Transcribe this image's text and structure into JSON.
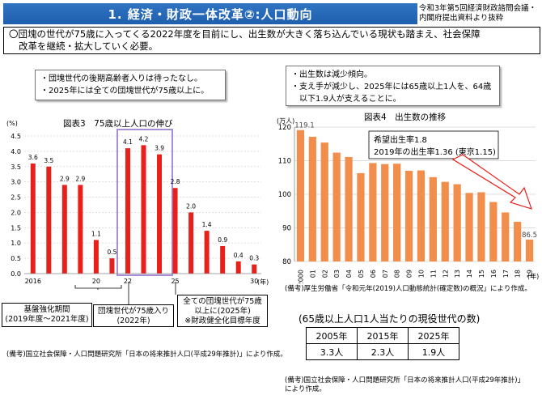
{
  "header": {
    "title": "1. 経済・財政一体改革②:人口動向",
    "source_line1": "令和3年第5回経済財政諮問会議・",
    "source_line2": "内閣府提出資料より抜粋"
  },
  "summary": {
    "line1": "〇団塊の世代が75歳に入ってくる2022年度を目前にし、出生数が大きく落ち込んでいる現状も踏まえ、社会保障",
    "line2": "改革を継続・拡大していく必要。"
  },
  "left_note": {
    "line1": "・団塊世代の後期高齢者入りは待ったなし。",
    "line2": "・2025年には全ての団塊世代が75歳以上に。"
  },
  "right_note": {
    "line1": "・出生数は減少傾向。",
    "line2": "・支え手が減少し、2025年には65歳以上1人を、64歳",
    "line3": "以下1.9人が支えることに。"
  },
  "chart3": {
    "title": "図表3　75歳以上人口の伸び",
    "unit": "(%)",
    "year_unit": "(年)",
    "callout_left_line1": "基盤強化期間",
    "callout_left_line2": "(2019年度～2021年度)",
    "callout_mid_line1": "団塊世代が75歳入り",
    "callout_mid_line2": "(2022年)",
    "callout_right_line1": "全ての団塊世代が75歳",
    "callout_right_line2": "以上に(2025年)",
    "callout_right_line3": "※財政健全化目標年度",
    "footnote": "(備考)国立社会保障・人口問題研究所「日本の将来推計人口(平成29年推計)」により作成。"
  },
  "chart4": {
    "title": "図表4　出生数の推移",
    "unit": "(万人)",
    "year_unit": "(年)",
    "annot_line1": "希望出生率1.8",
    "annot_line2": "2019年の出生率1.36 (東京1.15)",
    "footnote": "(備考)厚生労働省「令和元年(2019)人口動態統計(確定数)の概況」により作成。"
  },
  "workers": {
    "title": "(65歳以上人口1人当たりの現役世代の数)",
    "headers": [
      "2005年",
      "2015年",
      "2025年"
    ],
    "values": [
      "3.3人",
      "2.3人",
      "1.9人"
    ],
    "footnote_line1": "(備考)国立社会保障・人口問題研究所「日本の将来推計人口(平成29年推計)」",
    "footnote_line2": "により作成。"
  },
  "colors": {
    "header_blue": "#2563b4",
    "bar_red": "#e8201b",
    "bar_orange": "#f28e4c",
    "highlight_purple": "#a88ed4"
  },
  "chart_data": [
    {
      "type": "bar",
      "title": "図表3　75歳以上人口の伸び",
      "ylabel": "(%)",
      "ylim": [
        0,
        4.5
      ],
      "x": [
        2016,
        2017,
        2018,
        2019,
        2020,
        2021,
        2022,
        2023,
        2024,
        2025,
        2026,
        2027,
        2028,
        2029,
        2030
      ],
      "tick_labels": [
        "2016",
        "",
        "",
        "",
        "20",
        "",
        "22",
        "",
        "",
        "25",
        "",
        "",
        "",
        "",
        "30"
      ],
      "yticks": [
        "0.0",
        "0.5",
        "1.0",
        "1.5",
        "2.0",
        "2.5",
        "3.0",
        "3.5",
        "4.0",
        "4.5"
      ],
      "values": [
        3.6,
        3.5,
        2.9,
        2.9,
        1.1,
        0.5,
        4.1,
        4.2,
        3.9,
        2.8,
        2.0,
        1.4,
        0.9,
        0.4,
        0.3
      ],
      "value_labels": [
        "3.6",
        "3.5",
        "2.9",
        "2.9",
        "1.1",
        "0.5",
        "4.1",
        "4.2",
        "3.9",
        "2.8",
        "2.0",
        "1.4",
        "0.9",
        "0.4",
        "0.3"
      ],
      "grid": true
    },
    {
      "type": "bar",
      "title": "図表4　出生数の推移",
      "ylabel": "(万人)",
      "ylim": [
        80,
        120
      ],
      "yticks": [
        "80",
        "90",
        "100",
        "110",
        "120"
      ],
      "x_labels": [
        "2000",
        "01",
        "02",
        "03",
        "04",
        "05",
        "06",
        "07",
        "08",
        "09",
        "10",
        "11",
        "12",
        "13",
        "14",
        "15",
        "16",
        "17",
        "18",
        "19"
      ],
      "values": [
        119.1,
        117.1,
        115.4,
        112.4,
        111.1,
        106.3,
        109.3,
        109.0,
        109.1,
        107.0,
        107.1,
        105.1,
        103.7,
        103.0,
        100.4,
        100.6,
        97.7,
        94.6,
        91.8,
        86.5
      ],
      "value_labels": [
        "119.1",
        "",
        "",
        "",
        "",
        "",
        "",
        "",
        "",
        "",
        "",
        "",
        "",
        "",
        "",
        "",
        "",
        "",
        "",
        "86.5"
      ],
      "grid": true
    }
  ]
}
